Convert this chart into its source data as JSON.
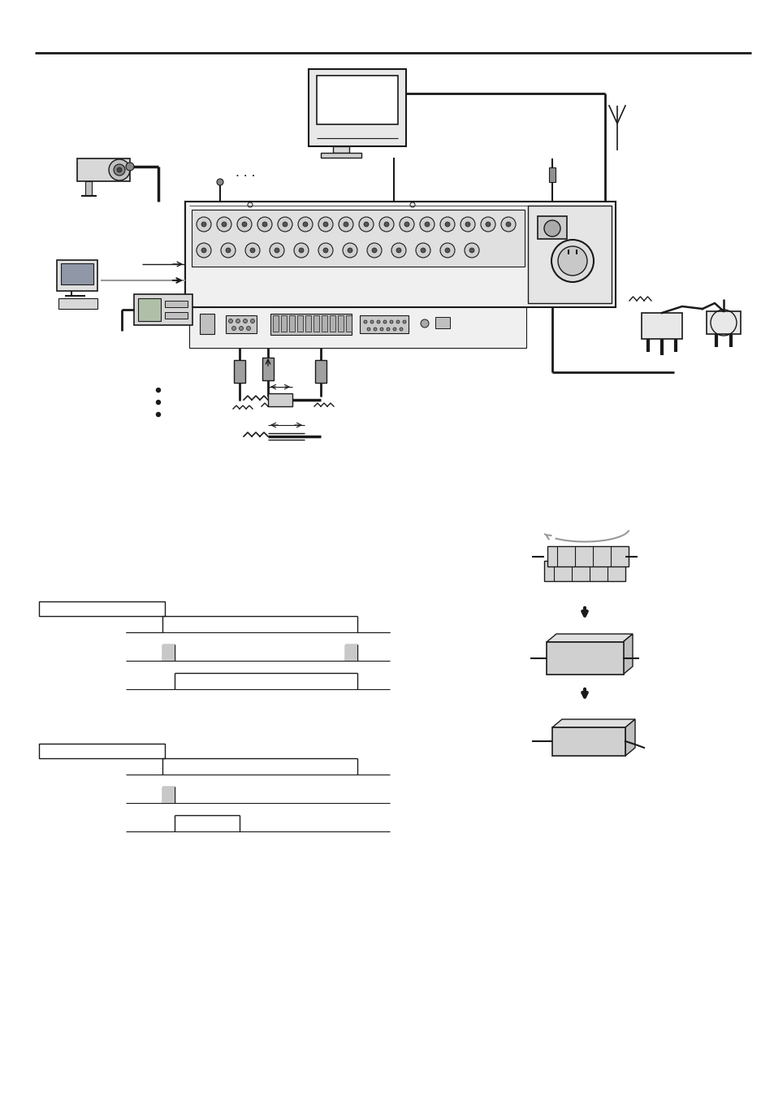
{
  "bg_color": "#ffffff",
  "line_color": "#1a1a1a",
  "gray_color": "#999999",
  "light_gray": "#cccccc",
  "fig_width": 9.54,
  "fig_height": 13.51
}
